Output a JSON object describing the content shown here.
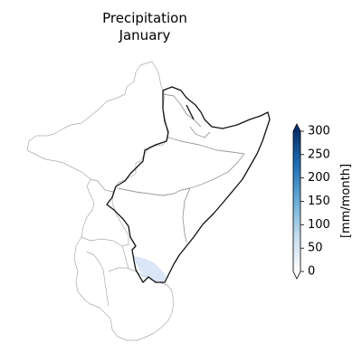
{
  "title": {
    "line1": "Precipitation",
    "line2": "January"
  },
  "colorbar": {
    "label": "[mm/month]",
    "ticks": [
      "0",
      "50",
      "100",
      "150",
      "200",
      "250",
      "300"
    ],
    "min": 0,
    "max": 300,
    "extend": "both",
    "colormap": "Blues",
    "colors": [
      "#ffffff",
      "#c6dbef",
      "#6baed6",
      "#2171b5",
      "#08306b"
    ]
  },
  "map": {
    "projection": "PlateCarree",
    "region": "Horn of Africa / Eastern Africa",
    "shaded_area_color": "#dbe6f6"
  }
}
